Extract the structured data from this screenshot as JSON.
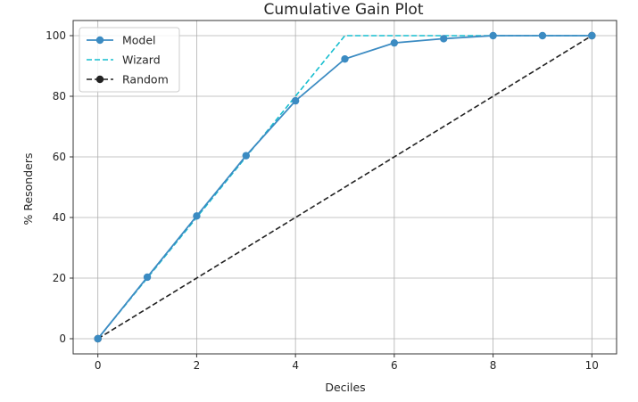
{
  "chart_data": {
    "type": "line",
    "title": "Cumulative Gain Plot",
    "xlabel": "Deciles",
    "ylabel": "% Resonders",
    "xlim": [
      -0.5,
      10.5
    ],
    "ylim": [
      -5,
      105
    ],
    "xticks": [
      "0",
      "2",
      "4",
      "6",
      "8",
      "10"
    ],
    "yticks": [
      "0",
      "20",
      "40",
      "60",
      "80",
      "100"
    ],
    "grid": true,
    "legend_position": "top-left",
    "series": [
      {
        "name": "Model",
        "style": "solid-markers",
        "color": "#3b8bc2",
        "x": [
          0,
          1,
          2,
          3,
          4,
          5,
          6,
          7,
          8,
          9,
          10
        ],
        "y": [
          0,
          20.3,
          40.5,
          60.4,
          78.5,
          92.3,
          97.6,
          99.0,
          100,
          100,
          100
        ]
      },
      {
        "name": "Wizard",
        "style": "dashed",
        "color": "#17becf",
        "x": [
          0,
          5,
          10
        ],
        "y": [
          0,
          100,
          100
        ]
      },
      {
        "name": "Random",
        "style": "dashed-markers",
        "color": "#222222",
        "x": [
          0,
          10
        ],
        "y": [
          0,
          100
        ]
      }
    ]
  }
}
